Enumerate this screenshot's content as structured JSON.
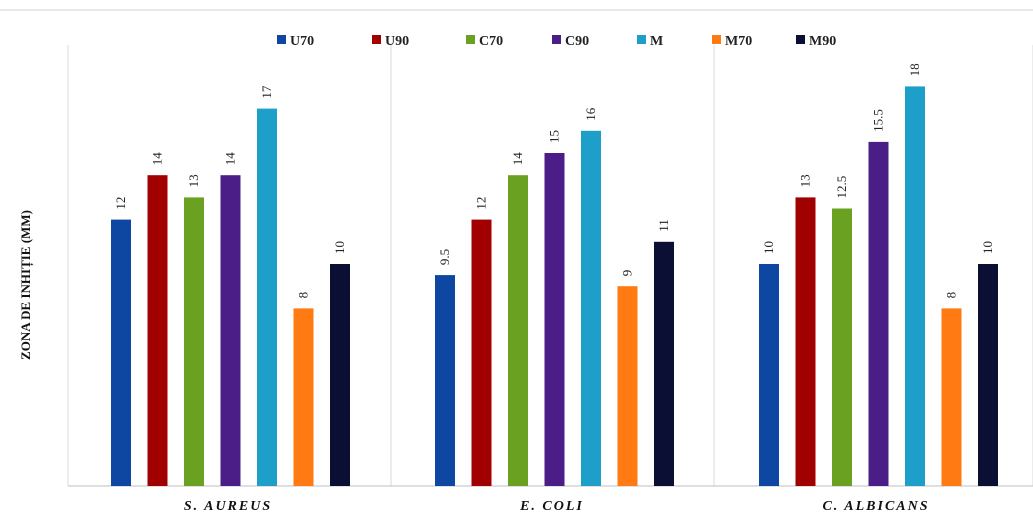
{
  "chart_data": {
    "type": "bar",
    "categories": [
      "S. AUREUS",
      "E. COLI",
      "C. ALBICANS"
    ],
    "series": [
      {
        "name": "U70",
        "color": "#0d47a1",
        "values": [
          12,
          9.5,
          10
        ]
      },
      {
        "name": "U90",
        "color": "#a00000",
        "values": [
          14,
          12,
          13
        ]
      },
      {
        "name": "C70",
        "color": "#6aa121",
        "values": [
          13,
          14,
          12.5
        ]
      },
      {
        "name": "C90",
        "color": "#4a1e86",
        "values": [
          14,
          15,
          15.5
        ]
      },
      {
        "name": "M",
        "color": "#1e9fc9",
        "values": [
          17,
          16,
          18
        ]
      },
      {
        "name": "M70",
        "color": "#ff7a12",
        "values": [
          8,
          9,
          8
        ]
      },
      {
        "name": "M90",
        "color": "#0b0f33",
        "values": [
          10,
          11,
          10
        ]
      }
    ],
    "value_labels": [
      [
        "12",
        "9.5",
        "10"
      ],
      [
        "14",
        "12",
        "13"
      ],
      [
        "13",
        "14",
        "12.5"
      ],
      [
        "14",
        "15",
        "15.5"
      ],
      [
        "17",
        "16",
        "18"
      ],
      [
        "8",
        "9",
        "8"
      ],
      [
        "10",
        "11",
        "10"
      ]
    ],
    "ylabel": "ZONA DE INHIȚIE  (MM)",
    "ylim": [
      0,
      19
    ],
    "grid": false,
    "legend_position": "top"
  }
}
